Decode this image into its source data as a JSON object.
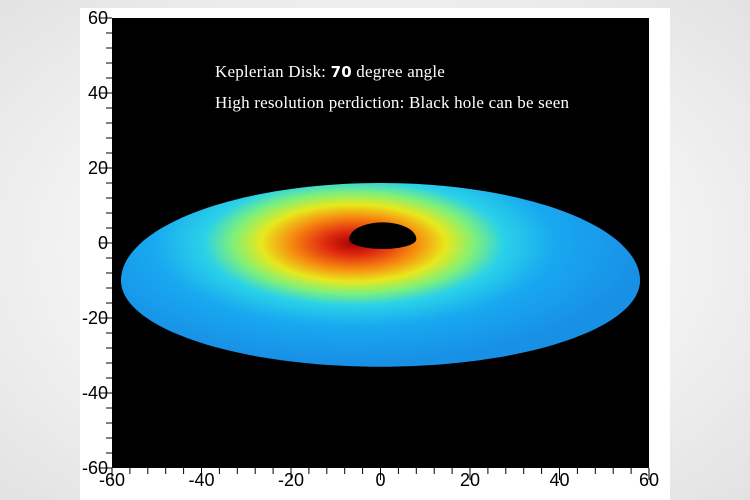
{
  "chart_data": {
    "type": "heatmap",
    "title": "",
    "xlabel": "",
    "ylabel": "",
    "xlim": [
      -60,
      60
    ],
    "ylim": [
      -60,
      60
    ],
    "grid": false,
    "x_ticks": [
      -60,
      -40,
      -20,
      0,
      20,
      40,
      60
    ],
    "y_ticks": [
      -60,
      -40,
      -20,
      0,
      20,
      40,
      60
    ],
    "x_tick_labels": [
      "-60",
      "-40",
      "-20",
      "0",
      "20",
      "40",
      "60"
    ],
    "y_tick_labels": [
      "-60",
      "-40",
      "-20",
      "0",
      "20",
      "40",
      "60"
    ],
    "annotations": {
      "line1_prefix": "Keplerian Disk: ",
      "line1_value": "70",
      "line1_suffix": " degree angle",
      "line2": "High resolution perdiction: Black hole can be seen"
    },
    "disk": {
      "x_extent": [
        -58,
        58
      ],
      "y_extent": [
        -33,
        16
      ],
      "center": [
        0,
        -10
      ],
      "hotspot": [
        -6,
        0
      ],
      "black_hole_center": [
        1,
        1
      ],
      "black_hole_extent": [
        -7,
        8
      ],
      "colors": [
        "#1898ec",
        "#22bdf0",
        "#47e6c8",
        "#d8ec1c",
        "#f58a14",
        "#d92414",
        "#000000"
      ]
    },
    "background_color": "#000000"
  }
}
